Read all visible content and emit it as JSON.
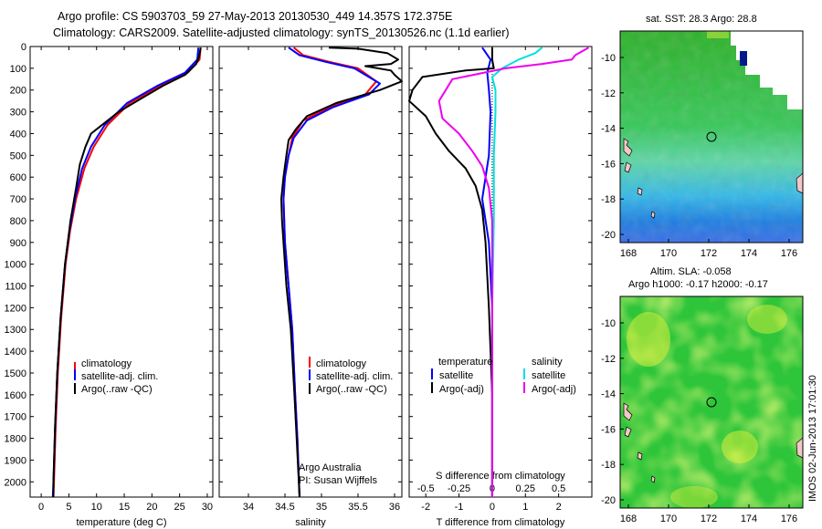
{
  "header": {
    "line1": "Argo profile: CS 5903703_59 27-May-2013 20130530_449 14.357S 172.375E",
    "line2": "Climatology: CARS2009. Satellite-adjusted climatology: synTS_20130526.nc (1.1d earlier)"
  },
  "chart_data": [
    {
      "type": "line",
      "panel": "temperature",
      "xlabel": "temperature (deg C)",
      "xlim": [
        -2,
        31
      ],
      "xticks": [
        0,
        5,
        10,
        15,
        20,
        25,
        30
      ],
      "ylim": [
        0,
        2070
      ],
      "yticks": [
        0,
        100,
        200,
        300,
        400,
        500,
        600,
        700,
        800,
        900,
        1000,
        1100,
        1200,
        1300,
        1400,
        1500,
        1600,
        1700,
        1800,
        1900,
        2000
      ],
      "legend": [
        "climatology",
        "satellite-adj. clim.",
        "Argo(..raw -QC)"
      ],
      "series": [
        {
          "name": "climatology",
          "color": "#ff0000",
          "points": [
            [
              28.8,
              5
            ],
            [
              28.6,
              60
            ],
            [
              26.5,
              120
            ],
            [
              21.5,
              180
            ],
            [
              16,
              260
            ],
            [
              12,
              360
            ],
            [
              9.5,
              460
            ],
            [
              7.8,
              560
            ],
            [
              6.3,
              700
            ],
            [
              5.2,
              850
            ],
            [
              4.4,
              1000
            ],
            [
              3.6,
              1250
            ],
            [
              3.0,
              1500
            ],
            [
              2.6,
              1750
            ],
            [
              2.3,
              2000
            ],
            [
              2.2,
              2070
            ]
          ]
        },
        {
          "name": "satellite-adj. clim.",
          "color": "#0000ff",
          "points": [
            [
              28.4,
              5
            ],
            [
              28.2,
              60
            ],
            [
              26,
              120
            ],
            [
              21,
              180
            ],
            [
              15.5,
              260
            ],
            [
              11.5,
              360
            ],
            [
              9,
              460
            ],
            [
              7.4,
              560
            ],
            [
              6.1,
              700
            ],
            [
              5.1,
              850
            ],
            [
              4.3,
              1000
            ],
            [
              3.5,
              1250
            ],
            [
              2.9,
              1500
            ],
            [
              2.5,
              1750
            ],
            [
              2.2,
              2000
            ],
            [
              2.1,
              2070
            ]
          ]
        },
        {
          "name": "Argo(..raw -QC)",
          "color": "#000000",
          "points": [
            [
              28.8,
              5
            ],
            [
              28.5,
              50
            ],
            [
              28,
              80
            ],
            [
              26,
              130
            ],
            [
              22,
              180
            ],
            [
              18,
              240
            ],
            [
              14,
              300
            ],
            [
              10.5,
              370
            ],
            [
              9,
              400
            ],
            [
              8,
              460
            ],
            [
              7,
              540
            ],
            [
              6.3,
              650
            ],
            [
              5.3,
              800
            ],
            [
              4.3,
              1000
            ],
            [
              3.5,
              1250
            ],
            [
              2.9,
              1500
            ],
            [
              2.5,
              1750
            ],
            [
              2.2,
              2000
            ],
            [
              2.2,
              2070
            ]
          ]
        }
      ]
    },
    {
      "type": "line",
      "panel": "salinity",
      "xlabel": "salinity",
      "xlim": [
        33.6,
        36.1
      ],
      "xticks": [
        34,
        34.5,
        35,
        35.5,
        36
      ],
      "xticklabels": [
        "34",
        "34.5",
        "35",
        "35.5",
        "36"
      ],
      "ylim": [
        0,
        2070
      ],
      "legend": [
        "climatology",
        "satellite-adj. clim.",
        "Argo(..raw -QC)"
      ],
      "annotation": [
        "Argo Australia",
        "PI: Susan Wijffels"
      ],
      "series": [
        {
          "name": "climatology",
          "color": "#ff0000",
          "points": [
            [
              34.62,
              5
            ],
            [
              34.75,
              40
            ],
            [
              35.1,
              70
            ],
            [
              35.5,
              100
            ],
            [
              35.75,
              160
            ],
            [
              35.6,
              220
            ],
            [
              35.1,
              280
            ],
            [
              34.75,
              340
            ],
            [
              34.6,
              420
            ],
            [
              34.55,
              500
            ],
            [
              34.5,
              600
            ],
            [
              34.48,
              700
            ],
            [
              34.5,
              900
            ],
            [
              34.55,
              1100
            ],
            [
              34.6,
              1300
            ],
            [
              34.64,
              1600
            ],
            [
              34.67,
              1800
            ],
            [
              34.7,
              2070
            ]
          ]
        },
        {
          "name": "satellite-adj. clim.",
          "color": "#0000ff",
          "points": [
            [
              34.55,
              5
            ],
            [
              34.7,
              40
            ],
            [
              35.05,
              70
            ],
            [
              35.45,
              100
            ],
            [
              35.8,
              170
            ],
            [
              35.65,
              220
            ],
            [
              35.15,
              280
            ],
            [
              34.8,
              340
            ],
            [
              34.62,
              420
            ],
            [
              34.55,
              500
            ],
            [
              34.5,
              600
            ],
            [
              34.48,
              700
            ],
            [
              34.5,
              900
            ],
            [
              34.55,
              1100
            ],
            [
              34.6,
              1300
            ],
            [
              34.64,
              1600
            ],
            [
              34.67,
              1800
            ],
            [
              34.7,
              2070
            ]
          ]
        },
        {
          "name": "Argo(..raw -QC)",
          "color": "#000000",
          "points": [
            [
              35.1,
              5
            ],
            [
              35.5,
              10
            ],
            [
              35.9,
              30
            ],
            [
              36.05,
              60
            ],
            [
              35.95,
              80
            ],
            [
              35.6,
              90
            ],
            [
              35.95,
              110
            ],
            [
              36.0,
              130
            ],
            [
              36.1,
              160
            ],
            [
              35.8,
              200
            ],
            [
              35.2,
              260
            ],
            [
              34.8,
              320
            ],
            [
              34.65,
              380
            ],
            [
              34.55,
              430
            ],
            [
              34.52,
              500
            ],
            [
              34.48,
              600
            ],
            [
              34.45,
              700
            ],
            [
              34.46,
              800
            ],
            [
              34.48,
              900
            ],
            [
              34.52,
              1100
            ],
            [
              34.58,
              1300
            ],
            [
              34.63,
              1600
            ],
            [
              34.66,
              1800
            ],
            [
              34.7,
              2070
            ]
          ]
        }
      ]
    },
    {
      "type": "line",
      "panel": "difference",
      "xlabel_bottom": "T difference from climatology",
      "xlabel_top": "S difference from climatology",
      "xlim": [
        -2.5,
        3
      ],
      "xticks": [
        -2,
        -1,
        0,
        1,
        2
      ],
      "sticks": [
        "-0.5",
        "-0.25",
        "0",
        "0.25",
        "0.5"
      ],
      "ylim": [
        0,
        2070
      ],
      "legend": {
        "temperature_title": "temperature",
        "salinity_title": "salinity",
        "entries": [
          "satellite",
          "Argo(-adj)",
          "satellite",
          "Argo(-adj)"
        ]
      },
      "series": [
        {
          "name": "T satellite",
          "color": "#0000ff",
          "points": [
            [
              -0.3,
              5
            ],
            [
              -0.05,
              60
            ],
            [
              -0.15,
              120
            ],
            [
              -0.1,
              200
            ],
            [
              -0.05,
              300
            ],
            [
              -0.1,
              500
            ],
            [
              -0.3,
              700
            ],
            [
              -0.1,
              900
            ],
            [
              0,
              1200
            ],
            [
              0,
              2070
            ]
          ]
        },
        {
          "name": "T Argo(-adj)",
          "color": "#000000",
          "points": [
            [
              0,
              5
            ],
            [
              0,
              60
            ],
            [
              0.05,
              100
            ],
            [
              -0.8,
              110
            ],
            [
              -2.1,
              140
            ],
            [
              -2.4,
              200
            ],
            [
              -2.5,
              250
            ],
            [
              -2.0,
              320
            ],
            [
              -1.7,
              400
            ],
            [
              -1.3,
              480
            ],
            [
              -0.8,
              560
            ],
            [
              -0.5,
              640
            ],
            [
              -0.3,
              750
            ],
            [
              -0.2,
              900
            ],
            [
              -0.1,
              1200
            ],
            [
              0,
              1600
            ],
            [
              0,
              2070
            ]
          ]
        },
        {
          "name": "S satellite",
          "color": "#00e0e0",
          "points": [
            [
              1.5,
              5
            ],
            [
              1.3,
              30
            ],
            [
              0.8,
              60
            ],
            [
              0.3,
              100
            ],
            [
              0,
              140
            ],
            [
              0.1,
              200
            ],
            [
              0.1,
              300
            ],
            [
              0.05,
              500
            ],
            [
              0.05,
              800
            ],
            [
              0,
              1200
            ],
            [
              0,
              2070
            ]
          ]
        },
        {
          "name": "S Argo(-adj)",
          "color": "#ee00ee",
          "points": [
            [
              2.9,
              5
            ],
            [
              2.5,
              40
            ],
            [
              2.4,
              60
            ],
            [
              1.5,
              80
            ],
            [
              0.4,
              100
            ],
            [
              -1.2,
              150
            ],
            [
              -1.6,
              250
            ],
            [
              -1.5,
              330
            ],
            [
              -1.0,
              400
            ],
            [
              -0.6,
              480
            ],
            [
              -0.3,
              550
            ],
            [
              -0.1,
              650
            ],
            [
              0,
              800
            ],
            [
              0,
              1200
            ],
            [
              0,
              2070
            ]
          ]
        }
      ]
    }
  ],
  "maps": {
    "top": {
      "title": "sat. SST: 28.3  Argo: 28.8",
      "xticks": [
        "168",
        "170",
        "172",
        "174",
        "176"
      ],
      "yticks": [
        "-10",
        "-12",
        "-14",
        "-16",
        "-18",
        "-20"
      ]
    },
    "bottom": {
      "title_line1": "Altim. SLA: -0.058",
      "title_line2": "Argo h1000: -0.17 h2000: -0.17",
      "xticks": [
        "168",
        "170",
        "172",
        "174",
        "176"
      ],
      "yticks": [
        "-10",
        "-12",
        "-14",
        "-16",
        "-18",
        "-20"
      ]
    }
  },
  "stamp": "IMOS 02-Jun-2013 17:01:30"
}
